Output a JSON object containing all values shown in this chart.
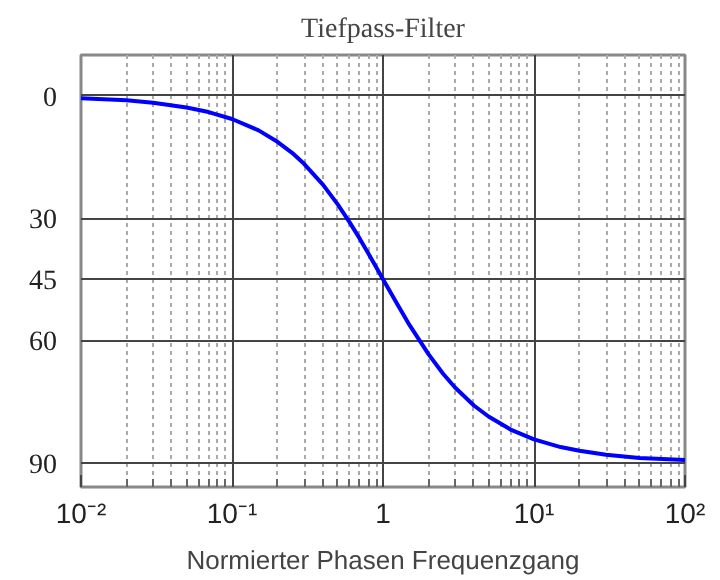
{
  "chart_data": {
    "type": "line",
    "title": "Tiefpass-Filter",
    "xlabel": "Normierter Phasen Frequenzgang",
    "log": "x",
    "grid": true,
    "marker": "none",
    "line_style": "solid",
    "xlim": [
      0.01,
      100
    ],
    "ylim": [
      96,
      -10
    ],
    "xticks": [
      {
        "value": 0.01,
        "label": "10⁻²"
      },
      {
        "value": 0.02,
        "label": null
      },
      {
        "value": 0.03,
        "label": null
      },
      {
        "value": 0.04,
        "label": null
      },
      {
        "value": 0.05,
        "label": null
      },
      {
        "value": 0.06,
        "label": null
      },
      {
        "value": 0.07,
        "label": null
      },
      {
        "value": 0.08,
        "label": null
      },
      {
        "value": 0.09,
        "label": null
      },
      {
        "value": 0.1,
        "label": "10⁻¹"
      },
      {
        "value": 0.2,
        "label": null
      },
      {
        "value": 0.3,
        "label": null
      },
      {
        "value": 0.4,
        "label": null
      },
      {
        "value": 0.5,
        "label": null
      },
      {
        "value": 0.6,
        "label": null
      },
      {
        "value": 0.7,
        "label": null
      },
      {
        "value": 0.8,
        "label": null
      },
      {
        "value": 0.9,
        "label": null
      },
      {
        "value": 1,
        "label": "1"
      },
      {
        "value": 2,
        "label": null
      },
      {
        "value": 3,
        "label": null
      },
      {
        "value": 4,
        "label": null
      },
      {
        "value": 5,
        "label": null
      },
      {
        "value": 6,
        "label": null
      },
      {
        "value": 7,
        "label": null
      },
      {
        "value": 8,
        "label": null
      },
      {
        "value": 9,
        "label": null
      },
      {
        "value": 10,
        "label": "10¹"
      },
      {
        "value": 20,
        "label": null
      },
      {
        "value": 30,
        "label": null
      },
      {
        "value": 40,
        "label": null
      },
      {
        "value": 50,
        "label": null
      },
      {
        "value": 60,
        "label": null
      },
      {
        "value": 70,
        "label": null
      },
      {
        "value": 80,
        "label": null
      },
      {
        "value": 90,
        "label": null
      },
      {
        "value": 100,
        "label": "10²"
      }
    ],
    "yticks": [
      0,
      30,
      45,
      60,
      90
    ],
    "x": [
      0.01,
      0.02,
      0.03,
      0.05,
      0.07,
      0.1,
      0.15,
      0.2,
      0.25,
      0.3,
      0.4,
      0.5,
      0.6,
      0.7,
      0.8,
      1,
      1.25,
      1.5,
      2,
      2.5,
      3,
      4,
      5,
      7,
      10,
      15,
      20,
      30,
      50,
      100
    ],
    "series": [
      {
        "color": "#0000ff",
        "values": [
          0.6,
          1.1,
          1.7,
          2.9,
          4,
          5.7,
          8.5,
          11.3,
          14,
          16.7,
          21.8,
          26.6,
          31,
          35,
          38.7,
          45,
          51.3,
          56.3,
          63.4,
          68.2,
          71.6,
          76,
          78.7,
          81.9,
          84.3,
          86.2,
          87.1,
          88.1,
          88.9,
          89.4
        ]
      }
    ]
  }
}
